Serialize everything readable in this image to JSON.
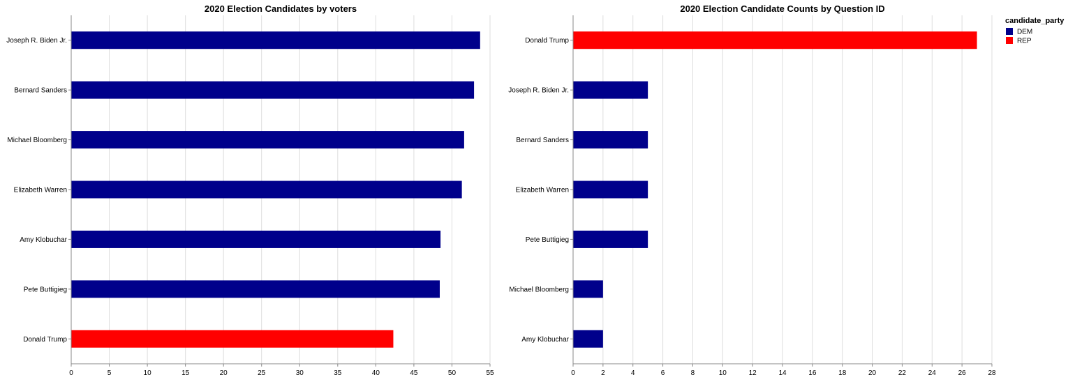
{
  "colors": {
    "DEM": "#00008b",
    "REP": "#ff0000"
  },
  "legend": {
    "title": "candidate_party",
    "entries": [
      {
        "label": "DEM",
        "color": "#00008b"
      },
      {
        "label": "REP",
        "color": "#ff0000"
      }
    ]
  },
  "chart_data": [
    {
      "type": "bar",
      "orientation": "horizontal",
      "title": "2020 Election Candidates by voters",
      "categories": [
        "Joseph R. Biden Jr.",
        "Bernard Sanders",
        "Michael Bloomberg",
        "Elizabeth Warren",
        "Amy Klobuchar",
        "Pete Buttigieg",
        "Donald Trump"
      ],
      "values": [
        53.7,
        52.9,
        51.6,
        51.3,
        48.5,
        48.4,
        42.3
      ],
      "parties": [
        "DEM",
        "DEM",
        "DEM",
        "DEM",
        "DEM",
        "DEM",
        "REP"
      ],
      "xlim": [
        0,
        55
      ],
      "xticks": [
        0,
        5,
        10,
        15,
        20,
        25,
        30,
        35,
        40,
        45,
        50,
        55
      ],
      "grid": true
    },
    {
      "type": "bar",
      "orientation": "horizontal",
      "title": "2020 Election Candidate Counts by Question ID",
      "categories": [
        "Donald Trump",
        "Joseph R. Biden Jr.",
        "Bernard Sanders",
        "Elizabeth Warren",
        "Pete Buttigieg",
        "Michael Bloomberg",
        "Amy Klobuchar"
      ],
      "values": [
        27,
        5,
        5,
        5,
        5,
        2,
        2
      ],
      "parties": [
        "REP",
        "DEM",
        "DEM",
        "DEM",
        "DEM",
        "DEM",
        "DEM"
      ],
      "xlim": [
        0,
        28
      ],
      "xticks": [
        0,
        2,
        4,
        6,
        8,
        10,
        12,
        14,
        16,
        18,
        20,
        22,
        24,
        26,
        28
      ],
      "grid": true,
      "legend_position": "top-right"
    }
  ]
}
